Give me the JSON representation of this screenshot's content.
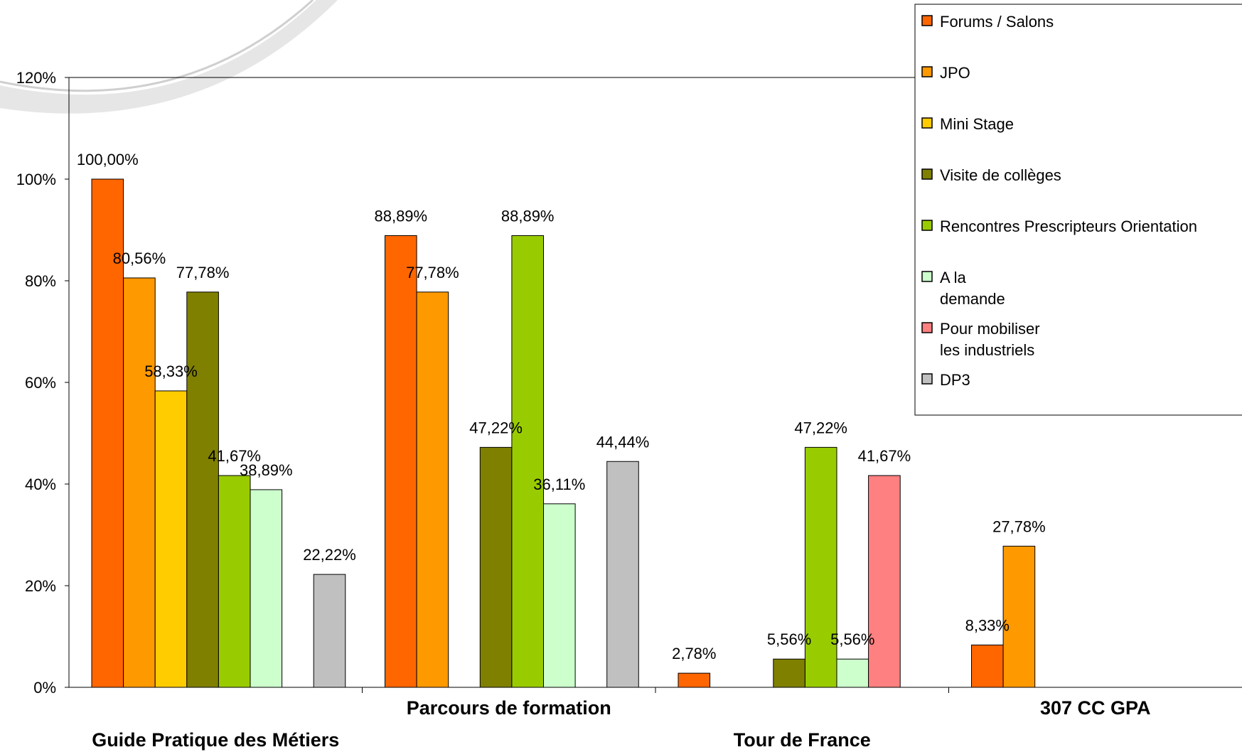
{
  "chart_data": {
    "type": "bar",
    "title": "",
    "xlabel": "",
    "ylabel": "",
    "ylim": [
      0,
      120
    ],
    "yticks": [
      "0%",
      "20%",
      "40%",
      "60%",
      "80%",
      "100%",
      "120%"
    ],
    "categories": [
      "Guide Pratique des Métiers",
      "Parcours de formation",
      "Tour de France",
      "307 CC GPA"
    ],
    "legend_position": "top-right",
    "grid": false,
    "series": [
      {
        "name": "Forums / Salons",
        "color": "#FF6600",
        "values": [
          100.0,
          88.89,
          2.78,
          8.33
        ],
        "labels": [
          "100,00%",
          "88,89%",
          "2,78%",
          "8,33%"
        ]
      },
      {
        "name": "JPO",
        "color": "#FF9900",
        "values": [
          80.56,
          77.78,
          null,
          27.78
        ],
        "labels": [
          "80,56%",
          "77,78%",
          "",
          "27,78%"
        ]
      },
      {
        "name": "Mini Stage",
        "color": "#FFCC00",
        "values": [
          58.33,
          null,
          null,
          null
        ],
        "labels": [
          "58,33%",
          "",
          "",
          ""
        ]
      },
      {
        "name": "Visite de collèges",
        "color": "#808000",
        "values": [
          77.78,
          47.22,
          5.56,
          null
        ],
        "labels": [
          "77,78%",
          "47,22%",
          "5,56%",
          ""
        ]
      },
      {
        "name": "Rencontres Prescripteurs Orientation",
        "color": "#99CC00",
        "values": [
          41.67,
          88.89,
          47.22,
          null
        ],
        "labels": [
          "41,67%",
          "88,89%",
          "47,22%",
          ""
        ]
      },
      {
        "name": "A la demande",
        "name_lines": [
          "A la",
          "demande"
        ],
        "color": "#CCFFCC",
        "values": [
          38.89,
          36.11,
          5.56,
          null
        ],
        "labels": [
          "38,89%",
          "36,11%",
          "5,56%",
          ""
        ]
      },
      {
        "name": "Pour mobiliser les industriels",
        "name_lines": [
          "Pour mobiliser",
          "les industriels"
        ],
        "color": "#FF8080",
        "values": [
          null,
          null,
          41.67,
          null
        ],
        "labels": [
          "",
          "",
          "41,67%",
          ""
        ]
      },
      {
        "name": "DP3",
        "color": "#C0C0C0",
        "values": [
          22.22,
          44.44,
          null,
          null
        ],
        "labels": [
          "22,22%",
          "44,44%",
          "",
          ""
        ]
      }
    ]
  }
}
